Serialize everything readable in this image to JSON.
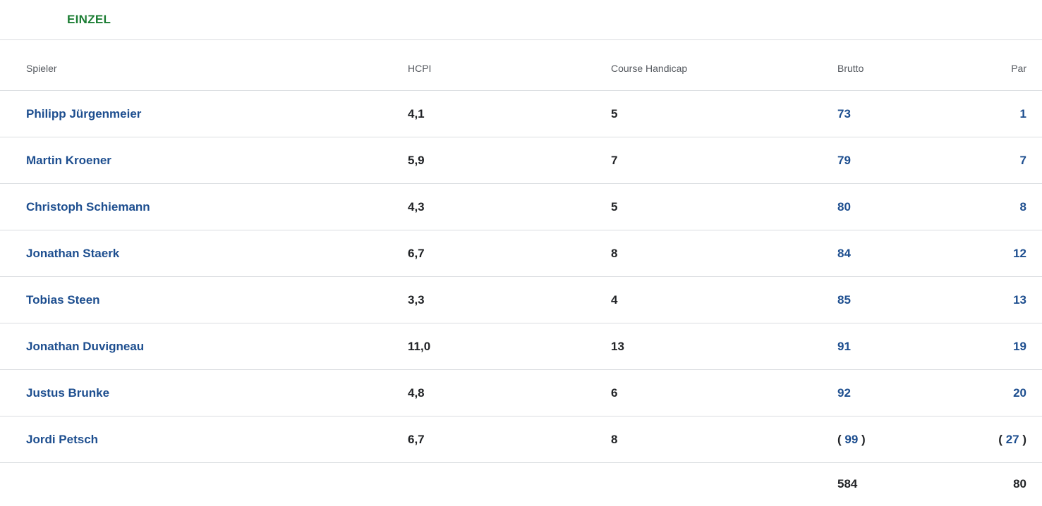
{
  "title": "EINZEL",
  "colors": {
    "accent_green": "#1b7d33",
    "link_blue": "#1d4e8f",
    "text_dark": "#212326",
    "header_gray": "#55595f",
    "divider": "#dadde0"
  },
  "table": {
    "columns": [
      {
        "key": "spieler",
        "label": "Spieler"
      },
      {
        "key": "hcpi",
        "label": "HCPI"
      },
      {
        "key": "course_handicap",
        "label": "Course Handicap"
      },
      {
        "key": "brutto",
        "label": "Brutto"
      },
      {
        "key": "par",
        "label": "Par"
      }
    ],
    "rows": [
      {
        "spieler": "Philipp Jürgenmeier",
        "hcpi": "4,1",
        "course_handicap": "5",
        "brutto": {
          "prefix": "",
          "value": "73",
          "suffix": ""
        },
        "par": {
          "prefix": "",
          "value": "1",
          "suffix": ""
        }
      },
      {
        "spieler": "Martin Kroener",
        "hcpi": "5,9",
        "course_handicap": "7",
        "brutto": {
          "prefix": "",
          "value": "79",
          "suffix": ""
        },
        "par": {
          "prefix": "",
          "value": "7",
          "suffix": ""
        }
      },
      {
        "spieler": "Christoph Schiemann",
        "hcpi": "4,3",
        "course_handicap": "5",
        "brutto": {
          "prefix": "",
          "value": "80",
          "suffix": ""
        },
        "par": {
          "prefix": "",
          "value": "8",
          "suffix": ""
        }
      },
      {
        "spieler": "Jonathan Staerk",
        "hcpi": "6,7",
        "course_handicap": "8",
        "brutto": {
          "prefix": "",
          "value": "84",
          "suffix": ""
        },
        "par": {
          "prefix": "",
          "value": "12",
          "suffix": ""
        }
      },
      {
        "spieler": "Tobias Steen",
        "hcpi": "3,3",
        "course_handicap": "4",
        "brutto": {
          "prefix": "",
          "value": "85",
          "suffix": ""
        },
        "par": {
          "prefix": "",
          "value": "13",
          "suffix": ""
        }
      },
      {
        "spieler": "Jonathan Duvigneau",
        "hcpi": "11,0",
        "course_handicap": "13",
        "brutto": {
          "prefix": "",
          "value": "91",
          "suffix": ""
        },
        "par": {
          "prefix": "",
          "value": "19",
          "suffix": ""
        }
      },
      {
        "spieler": "Justus Brunke",
        "hcpi": "4,8",
        "course_handicap": "6",
        "brutto": {
          "prefix": "",
          "value": "92",
          "suffix": ""
        },
        "par": {
          "prefix": "",
          "value": "20",
          "suffix": ""
        }
      },
      {
        "spieler": "Jordi Petsch",
        "hcpi": "6,7",
        "course_handicap": "8",
        "brutto": {
          "prefix": "( ",
          "value": "99",
          "suffix": " )"
        },
        "par": {
          "prefix": "( ",
          "value": "27",
          "suffix": " )"
        }
      }
    ],
    "totals": {
      "brutto": "584",
      "par": "80"
    }
  }
}
